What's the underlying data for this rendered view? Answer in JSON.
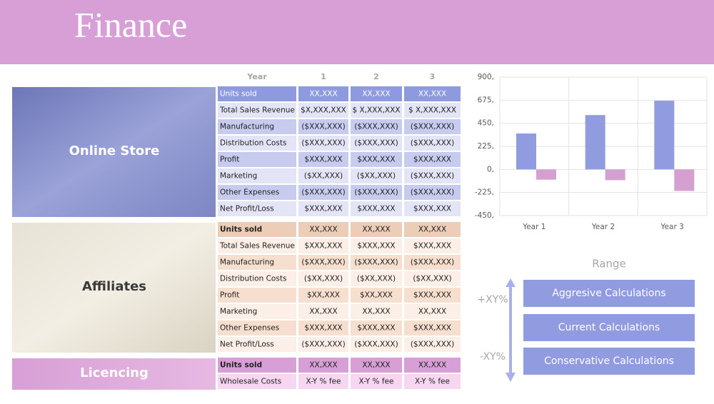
{
  "title": "Finance",
  "table": {
    "header": [
      "Year",
      "1",
      "2",
      "3"
    ]
  },
  "sections": [
    {
      "label": "Online Store",
      "rows": [
        [
          "Units sold",
          "XX,XXX",
          "XX,XXX",
          "XX,XXX"
        ],
        [
          "Total Sales Revenue",
          "$X,XXX,XXX",
          "$ X,XXX,XXX",
          "$ X,XXX,XXX"
        ],
        [
          "Manufacturing",
          "($XXX,XXX)",
          "($XXX,XXX)",
          "($XXX,XXX)"
        ],
        [
          "Distribution Costs",
          "($XXX,XXX)",
          "($XXX,XXX)",
          "($XXX,XXX)"
        ],
        [
          "Profit",
          "$XXX,XXX",
          "$XXX,XXX",
          "$XXX,XXX"
        ],
        [
          "Marketing",
          "($XX,XXX)",
          "($XX,XXX)",
          "($XXX,XXX)"
        ],
        [
          "Other Expenses",
          "($XXX,XXX)",
          "($XXX,XXX)",
          "($XXX,XXX)"
        ],
        [
          "Net Profit/Loss",
          "$XXX,XXX",
          "$XXX,XXX",
          "$XXX,XXX"
        ]
      ]
    },
    {
      "label": "Affiliates",
      "rows": [
        [
          "Units sold",
          "XX,XXX",
          "XX,XXX",
          "XX,XXX"
        ],
        [
          "Total Sales Revenue",
          "$XXX,XXX",
          "$XXX,XXX",
          "$XXX,XXX"
        ],
        [
          "Manufacturing",
          "($XXX,XXX)",
          "($XXX,XXX)",
          "($XXX,XXX)"
        ],
        [
          "Distribution Costs",
          "($XX,XXX)",
          "($XX,XXX)",
          "($XX,XXX)"
        ],
        [
          "Profit",
          "$XX,XXX",
          "$XX,XXX",
          "$XXX,XXX"
        ],
        [
          "Marketing",
          "XX,XXX",
          "XX,XXX",
          "XX,XXX"
        ],
        [
          "Other Expenses",
          "$XXX,XXX",
          "$XXX,XXX",
          "$XXX,XXX"
        ],
        [
          "Net Profit/Loss",
          "($XXX,XXX)",
          "($XXX,XXX)",
          "($XXX,XXX)"
        ]
      ]
    },
    {
      "label": "Licencing",
      "rows": [
        [
          "Units sold",
          "XX,XXX",
          "XX,XXX",
          "XX,XXX"
        ],
        [
          "Wholesale Costs",
          "X-Y % fee",
          "X-Y % fee",
          "X-Y % fee"
        ]
      ]
    }
  ],
  "chart_data": {
    "type": "bar",
    "categories": [
      "Year 1",
      "Year 2",
      "Year 3"
    ],
    "series": [
      {
        "color": "#919be0",
        "values": [
          350,
          530,
          670
        ]
      },
      {
        "color": "#d4a0cf",
        "values": [
          -100,
          -105,
          -210
        ]
      }
    ],
    "ylim": [
      -450,
      900
    ],
    "yticks": [
      {
        "value": 900,
        "label": "900,"
      },
      {
        "value": 675,
        "label": "675,"
      },
      {
        "value": 450,
        "label": "450,"
      },
      {
        "value": 225,
        "label": "225,"
      },
      {
        "value": 0,
        "label": "0,"
      },
      {
        "value": -225,
        "label": "-225,"
      },
      {
        "value": -450,
        "label": "-450,"
      }
    ],
    "grid": true
  },
  "range": {
    "title": "Range",
    "up": "+XY%",
    "down": "-XY%",
    "buttons": [
      "Aggresive Calculations",
      "Current Calculations",
      "Conservative Calculations"
    ]
  }
}
